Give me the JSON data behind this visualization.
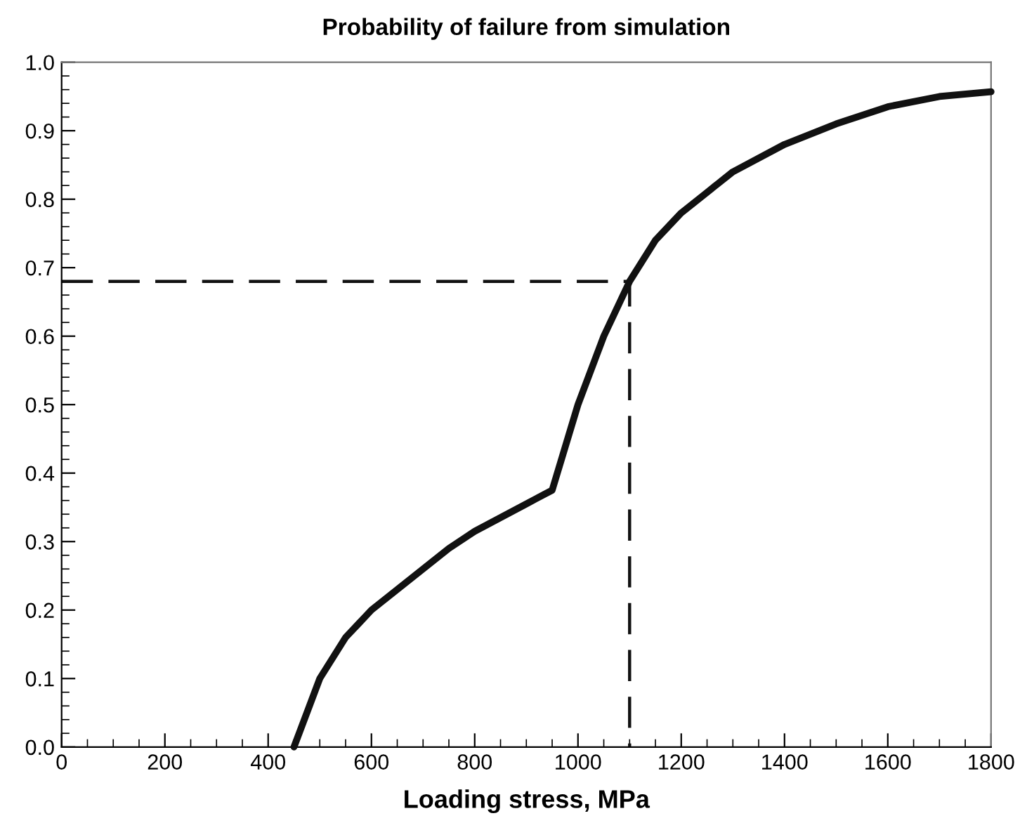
{
  "chart_data": {
    "type": "line",
    "title": "Probability of failure from simulation",
    "xlabel": "Loading stress, MPa",
    "xlim": [
      0,
      1800
    ],
    "xticks": [
      0,
      200,
      400,
      600,
      800,
      1000,
      1200,
      1400,
      1600,
      1800
    ],
    "ylim": [
      0,
      1.0
    ],
    "yticks": [
      {
        "value": 0,
        "label": "0.0"
      },
      0.1,
      0.2,
      0.3,
      0.4,
      0.5,
      0.6,
      0.7,
      0.8,
      0.9,
      {
        "value": 1.0,
        "label": "1.0"
      }
    ],
    "grid": false,
    "legend": false,
    "marker": "none",
    "series": [
      {
        "color": "#111111",
        "line_style": "solid",
        "x": [
          450,
          500,
          550,
          600,
          650,
          700,
          750,
          800,
          850,
          900,
          950,
          1000,
          1050,
          1100,
          1150,
          1200,
          1250,
          1300,
          1400,
          1500,
          1600,
          1700,
          1800
        ],
        "values": [
          0,
          0.1,
          0.16,
          0.2,
          0.23,
          0.26,
          0.29,
          0.315,
          0.335,
          0.355,
          0.375,
          0.5,
          0.6,
          0.68,
          0.74,
          0.78,
          0.81,
          0.84,
          0.88,
          0.91,
          0.935,
          0.95,
          0.957
        ]
      },
      {
        "color": "#111111",
        "line_style": "dashed",
        "x": [
          0,
          1100,
          1100
        ],
        "values": [
          0.68,
          0.68,
          0
        ]
      }
    ]
  }
}
